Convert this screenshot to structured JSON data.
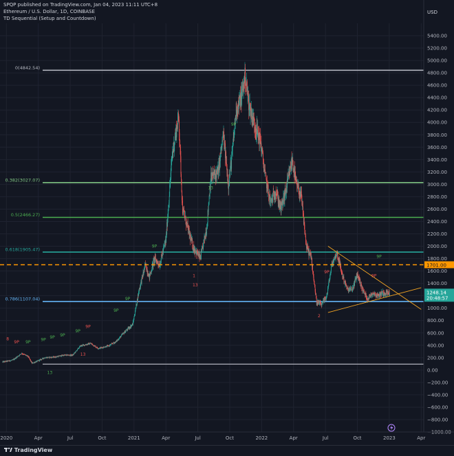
{
  "header": {
    "published": "SPQP published on TradingView.com, Jan 04, 2023 11:11 UTC+8",
    "symbol": "Ethereum / U.S. Dollar, 1D, COINBASE",
    "indicator": "TD Sequential (Setup and Countdown)"
  },
  "footer": {
    "logo_text": "TradingView"
  },
  "chart_data": {
    "type": "candlestick",
    "currency": "USD",
    "y_ticks": [
      5400,
      5200,
      5000,
      4800,
      4600,
      4400,
      4200,
      4000,
      3800,
      3600,
      3400,
      3200,
      3000,
      2800,
      2600,
      2400,
      2200,
      2000,
      1800,
      1600,
      1400,
      1200,
      1000,
      800,
      600,
      400,
      200,
      0,
      -200,
      -400,
      -600,
      -800,
      -1000
    ],
    "y_tick_labels": [
      "5400.00",
      "5200.00",
      "5000.00",
      "4800.00",
      "4600.00",
      "4400.00",
      "4200.00",
      "4000.00",
      "3800.00",
      "3600.00",
      "3400.00",
      "3200.00",
      "3000.00",
      "2800.00",
      "2600.00",
      "2400.00",
      "2200.00",
      "2000.00",
      "1800.00",
      "1600.00",
      "1400.00",
      "1200.00",
      "1000.00",
      "800.00",
      "600.00",
      "400.00",
      "200.00",
      "0.00",
      "−200.00",
      "−400.00",
      "−600.00",
      "−800.00",
      "−1000.00"
    ],
    "ylim": [
      -1000,
      5600
    ],
    "x_labels": [
      "2020",
      "Apr",
      "Jul",
      "Oct",
      "2021",
      "Apr",
      "Jul",
      "Oct",
      "2022",
      "Apr",
      "Jul",
      "Oct",
      "2023",
      "Apr"
    ],
    "x_label_values": [
      2020.0,
      2020.25,
      2020.5,
      2020.75,
      2021.0,
      2021.25,
      2021.5,
      2021.75,
      2022.0,
      2022.25,
      2022.5,
      2022.75,
      2023.0,
      2023.25
    ],
    "xlim": [
      2019.95,
      2023.27
    ],
    "price_path": [
      [
        2019.97,
        130
      ],
      [
        2020.05,
        160
      ],
      [
        2020.12,
        270
      ],
      [
        2020.17,
        220
      ],
      [
        2020.2,
        110
      ],
      [
        2020.24,
        140
      ],
      [
        2020.3,
        200
      ],
      [
        2020.38,
        210
      ],
      [
        2020.45,
        240
      ],
      [
        2020.52,
        240
      ],
      [
        2020.58,
        390
      ],
      [
        2020.66,
        430
      ],
      [
        2020.72,
        350
      ],
      [
        2020.8,
        390
      ],
      [
        2020.86,
        460
      ],
      [
        2020.92,
        600
      ],
      [
        2020.99,
        740
      ],
      [
        2021.04,
        1300
      ],
      [
        2021.09,
        1700
      ],
      [
        2021.12,
        1500
      ],
      [
        2021.16,
        1800
      ],
      [
        2021.2,
        1700
      ],
      [
        2021.25,
        2100
      ],
      [
        2021.3,
        3500
      ],
      [
        2021.35,
        4100
      ],
      [
        2021.38,
        2600
      ],
      [
        2021.42,
        2300
      ],
      [
        2021.46,
        2000
      ],
      [
        2021.52,
        1800
      ],
      [
        2021.57,
        2300
      ],
      [
        2021.6,
        3100
      ],
      [
        2021.66,
        3200
      ],
      [
        2021.7,
        3800
      ],
      [
        2021.74,
        3000
      ],
      [
        2021.77,
        3500
      ],
      [
        2021.8,
        4200
      ],
      [
        2021.84,
        4400
      ],
      [
        2021.87,
        4750
      ],
      [
        2021.9,
        4300
      ],
      [
        2021.94,
        4000
      ],
      [
        2021.99,
        3700
      ],
      [
        2022.03,
        3100
      ],
      [
        2022.07,
        2700
      ],
      [
        2022.11,
        2900
      ],
      [
        2022.15,
        2600
      ],
      [
        2022.19,
        2900
      ],
      [
        2022.24,
        3400
      ],
      [
        2022.27,
        3000
      ],
      [
        2022.31,
        2800
      ],
      [
        2022.35,
        2000
      ],
      [
        2022.39,
        1800
      ],
      [
        2022.43,
        1100
      ],
      [
        2022.47,
        1050
      ],
      [
        2022.51,
        1200
      ],
      [
        2022.55,
        1700
      ],
      [
        2022.59,
        1900
      ],
      [
        2022.63,
        1550
      ],
      [
        2022.67,
        1300
      ],
      [
        2022.71,
        1300
      ],
      [
        2022.75,
        1550
      ],
      [
        2022.79,
        1300
      ],
      [
        2022.83,
        1150
      ],
      [
        2022.87,
        1250
      ],
      [
        2022.91,
        1200
      ],
      [
        2022.95,
        1250
      ],
      [
        2023.0,
        1248
      ]
    ],
    "fib_levels": [
      {
        "label": "0(4842.54)",
        "value": 4842.54,
        "color": "#b2b5be"
      },
      {
        "label": "0.382(3027.07)",
        "value": 3027.07,
        "color": "#81c784"
      },
      {
        "label": "0.5(2466.27)",
        "value": 2466.27,
        "color": "#4caf50"
      },
      {
        "label": "0.618(1905.47)",
        "value": 1905.47,
        "color": "#26a69a"
      },
      {
        "label": "0.786(1107.04)",
        "value": 1107.04,
        "color": "#64b5f6"
      }
    ],
    "baseline": {
      "value": 95,
      "color": "#b2b5be"
    },
    "resistance": {
      "value": 1701.0,
      "label": "1701.00",
      "color": "#ff9800"
    },
    "current_price": {
      "value": 1248.14,
      "label": "1248.14",
      "countdown": "20:48:57",
      "color": "#26a69a"
    },
    "triangle": {
      "upper_from": [
        2022.52,
        2000
      ],
      "upper_to": [
        2023.25,
        980
      ],
      "lower_from": [
        2022.52,
        930
      ],
      "lower_to": [
        2023.25,
        1330
      ],
      "color": "#f5a623"
    },
    "colors": {
      "up": "#26a69a",
      "down": "#ef5350",
      "setup_green": "#4caf50",
      "setup_red": "#ef5350"
    },
    "markers": [
      {
        "t": "8",
        "x": 2020.01,
        "y": 480,
        "c": "red"
      },
      {
        "t": "9P",
        "x": 2020.08,
        "y": 430,
        "c": "red"
      },
      {
        "t": "9P",
        "x": 2020.17,
        "y": 430,
        "c": "green"
      },
      {
        "t": "9P",
        "x": 2020.29,
        "y": 470,
        "c": "green"
      },
      {
        "t": "9P",
        "x": 2020.36,
        "y": 510,
        "c": "green"
      },
      {
        "t": "9P",
        "x": 2020.44,
        "y": 540,
        "c": "green"
      },
      {
        "t": "9P",
        "x": 2020.56,
        "y": 610,
        "c": "green"
      },
      {
        "t": "9P",
        "x": 2020.64,
        "y": 680,
        "c": "red"
      },
      {
        "t": "9P",
        "x": 2020.86,
        "y": 940,
        "c": "green"
      },
      {
        "t": "9P",
        "x": 2020.95,
        "y": 1130,
        "c": "green"
      },
      {
        "t": "9P",
        "x": 2021.16,
        "y": 1980,
        "c": "green"
      },
      {
        "t": "9P",
        "x": 2021.78,
        "y": 3950,
        "c": "green"
      },
      {
        "t": "9P",
        "x": 2022.51,
        "y": 1560,
        "c": "red"
      },
      {
        "t": "9P",
        "x": 2022.88,
        "y": 1500,
        "c": "red"
      },
      {
        "t": "9P",
        "x": 2022.92,
        "y": 1810,
        "c": "green"
      },
      {
        "t": "13",
        "x": 2020.34,
        "y": -60,
        "c": "green"
      },
      {
        "t": "13",
        "x": 2021.48,
        "y": 1350,
        "c": "red"
      },
      {
        "t": "13",
        "x": 2021.6,
        "y": 2920,
        "c": "green"
      },
      {
        "t": "1",
        "x": 2021.47,
        "y": 1500,
        "c": "red"
      },
      {
        "t": "2",
        "x": 2022.45,
        "y": 850,
        "c": "red"
      },
      {
        "t": "13",
        "x": 2020.6,
        "y": 230,
        "c": "red"
      }
    ]
  }
}
